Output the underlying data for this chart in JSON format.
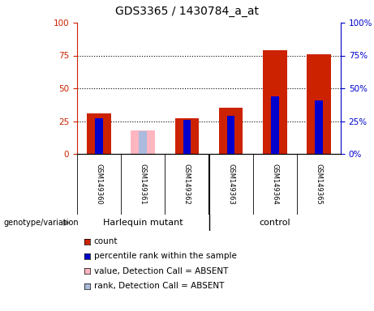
{
  "title": "GDS3365 / 1430784_a_at",
  "samples": [
    "GSM149360",
    "GSM149361",
    "GSM149362",
    "GSM149363",
    "GSM149364",
    "GSM149365"
  ],
  "count_values": [
    31,
    0,
    27,
    35,
    79,
    76
  ],
  "rank_values": [
    27,
    0,
    26,
    29,
    44,
    41
  ],
  "absent_value_values": [
    0,
    18,
    0,
    0,
    0,
    0
  ],
  "absent_rank_values": [
    0,
    17,
    0,
    0,
    0,
    0
  ],
  "group_labels": [
    "Harlequin mutant",
    "control"
  ],
  "group_color": "#66EE66",
  "ylim": [
    0,
    100
  ],
  "yticks": [
    0,
    25,
    50,
    75,
    100
  ],
  "left_axis_color": "#CC2200",
  "right_axis_color": "#0000CC",
  "count_color": "#CC2200",
  "rank_color": "#0000CC",
  "absent_value_color": "#FFB6C1",
  "absent_rank_color": "#AABBDD",
  "background_color": "#ffffff",
  "genotype_label": "genotype/variation",
  "legend_items": [
    {
      "color": "#CC2200",
      "label": "count"
    },
    {
      "color": "#0000CC",
      "label": "percentile rank within the sample"
    },
    {
      "color": "#FFB6C1",
      "label": "value, Detection Call = ABSENT"
    },
    {
      "color": "#AABBDD",
      "label": "rank, Detection Call = ABSENT"
    }
  ]
}
